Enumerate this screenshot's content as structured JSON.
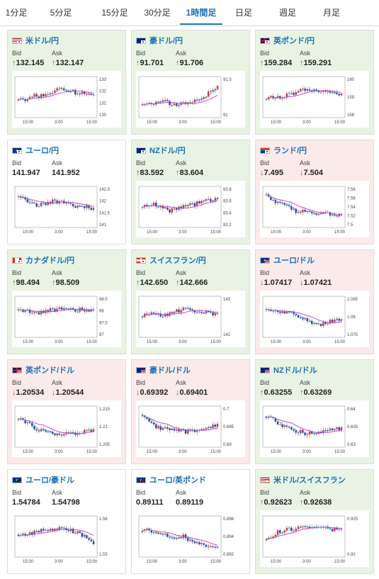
{
  "tabs": [
    {
      "label": "1分足",
      "active": false
    },
    {
      "label": "5分足",
      "active": false
    },
    {
      "label": "15分足",
      "active": false
    },
    {
      "label": "30分足",
      "active": false
    },
    {
      "label": "1時間足",
      "active": true
    },
    {
      "label": "日足",
      "active": false
    },
    {
      "label": "週足",
      "active": false
    },
    {
      "label": "月足",
      "active": false
    }
  ],
  "labels": {
    "bid": "Bid",
    "ask": "Ask"
  },
  "colors": {
    "up_bg": "#e9f3e3",
    "down_bg": "#fbeaea",
    "up_arrow": "#2e8b2e",
    "down_arrow": "#d23a3a",
    "ma_line": "#cc33cc",
    "link": "#1c6fb5"
  },
  "pairs": [
    {
      "name": "米ドル/円",
      "flag": "us-jp-flag-icon",
      "trend": "up",
      "bid_arrow": "↑",
      "bid": "132.145",
      "ask_arrow": "↑",
      "ask": "132.147",
      "chart": {
        "y_ticks": [
          "133",
          "132",
          "131",
          "130"
        ],
        "x_ticks": [
          "15:00",
          "3:00",
          "15:00"
        ]
      }
    },
    {
      "name": "豪ドル/円",
      "flag": "au-jp-flag-icon",
      "trend": "up",
      "bid_arrow": "↑",
      "bid": "91.701",
      "ask_arrow": "↑",
      "ask": "91.706",
      "chart": {
        "y_ticks": [
          "91.5",
          "91"
        ],
        "x_ticks": [
          "15:00",
          "3:00",
          "15:00"
        ]
      }
    },
    {
      "name": "英ポンド/円",
      "flag": "gb-jp-flag-icon",
      "trend": "up",
      "bid_arrow": "↑",
      "bid": "159.284",
      "ask_arrow": "↑",
      "ask": "159.291",
      "chart": {
        "y_ticks": [
          "160",
          "159",
          "158"
        ],
        "x_ticks": [
          "15:00",
          "3:00",
          "15:00"
        ]
      }
    },
    {
      "name": "ユーロ/円",
      "flag": "eu-jp-flag-icon",
      "trend": "flat",
      "bid_arrow": "",
      "bid": "141.947",
      "ask_arrow": "",
      "ask": "141.952",
      "chart": {
        "y_ticks": [
          "142.5",
          "142",
          "141.5",
          "141"
        ],
        "x_ticks": [
          "15:00",
          "3:00",
          "15:00"
        ]
      }
    },
    {
      "name": "NZドル/円",
      "flag": "nz-jp-flag-icon",
      "trend": "up",
      "bid_arrow": "↑",
      "bid": "83.592",
      "ask_arrow": "↑",
      "ask": "83.604",
      "chart": {
        "y_ticks": [
          "83.8",
          "83.6",
          "83.4",
          "83.2"
        ],
        "x_ticks": [
          "15:00",
          "3:00",
          "15:00"
        ]
      }
    },
    {
      "name": "ランド/円",
      "flag": "za-jp-flag-icon",
      "trend": "down",
      "bid_arrow": "↓",
      "bid": "7.495",
      "ask_arrow": "↓",
      "ask": "7.504",
      "chart": {
        "y_ticks": [
          "7.58",
          "7.56",
          "7.54",
          "7.52",
          "7.5"
        ],
        "x_ticks": [
          "15:00",
          "3:00",
          "15:00"
        ]
      }
    },
    {
      "name": "カナダドル/円",
      "flag": "ca-jp-flag-icon",
      "trend": "up",
      "bid_arrow": "↑",
      "bid": "98.494",
      "ask_arrow": "↑",
      "ask": "98.509",
      "chart": {
        "y_ticks": [
          "98.5",
          "98",
          "97.5",
          "97"
        ],
        "x_ticks": [
          "15:00",
          "3:00",
          "15:00"
        ]
      }
    },
    {
      "name": "スイスフラン/円",
      "flag": "ch-jp-flag-icon",
      "trend": "up",
      "bid_arrow": "↑",
      "bid": "142.650",
      "ask_arrow": "↑",
      "ask": "142.666",
      "chart": {
        "y_ticks": [
          "143",
          "142"
        ],
        "x_ticks": [
          "15:00",
          "3:00",
          "15:00"
        ]
      }
    },
    {
      "name": "ユーロ/ドル",
      "flag": "eu-us-flag-icon",
      "trend": "down",
      "bid_arrow": "↓",
      "bid": "1.07417",
      "ask_arrow": "↓",
      "ask": "1.07421",
      "chart": {
        "y_ticks": [
          "1.085",
          "1.08",
          "1.075"
        ],
        "x_ticks": [
          "15:00",
          "3:00",
          "15:00"
        ]
      }
    },
    {
      "name": "英ポンド/ドル",
      "flag": "gb-us-flag-icon",
      "trend": "down",
      "bid_arrow": "↓",
      "bid": "1.20534",
      "ask_arrow": "↓",
      "ask": "1.20544",
      "chart": {
        "y_ticks": [
          "1.215",
          "1.21",
          "1.205"
        ],
        "x_ticks": [
          "15:00",
          "3:00",
          "15:00"
        ]
      }
    },
    {
      "name": "豪ドル/ドル",
      "flag": "au-us-flag-icon",
      "trend": "down",
      "bid_arrow": "↓",
      "bid": "0.69392",
      "ask_arrow": "↓",
      "ask": "0.69401",
      "chart": {
        "y_ticks": [
          "0.7",
          "0.695",
          "0.69"
        ],
        "x_ticks": [
          "15:00",
          "3:00",
          "15:00"
        ]
      }
    },
    {
      "name": "NZドル/ドル",
      "flag": "nz-us-flag-icon",
      "trend": "up",
      "bid_arrow": "↑",
      "bid": "0.63255",
      "ask_arrow": "↑",
      "ask": "0.63269",
      "chart": {
        "y_ticks": [
          "0.64",
          "0.635",
          "0.63"
        ],
        "x_ticks": [
          "15:00",
          "3:00",
          "15:00"
        ]
      }
    },
    {
      "name": "ユーロ/豪ドル",
      "flag": "eu-au-flag-icon",
      "trend": "flat",
      "bid_arrow": "",
      "bid": "1.54784",
      "ask_arrow": "",
      "ask": "1.54798",
      "chart": {
        "y_ticks": [
          "1.56",
          "1.55"
        ],
        "x_ticks": [
          "15:00",
          "3:00",
          "15:00"
        ]
      }
    },
    {
      "name": "ユーロ/英ポンド",
      "flag": "eu-gb-flag-icon",
      "trend": "flat",
      "bid_arrow": "",
      "bid": "0.89111",
      "ask_arrow": "",
      "ask": "0.89119",
      "chart": {
        "y_ticks": [
          "0.896",
          "0.894",
          "0.892"
        ],
        "x_ticks": [
          "15:00",
          "3:00",
          "15:00"
        ]
      }
    },
    {
      "name": "米ドル/スイスフラン",
      "flag": "us-ch-flag-icon",
      "trend": "up",
      "bid_arrow": "↑",
      "bid": "0.92623",
      "ask_arrow": "↑",
      "ask": "0.92638",
      "chart": {
        "y_ticks": [
          "0.925",
          "0.92"
        ],
        "x_ticks": [
          "15:00",
          "3:00",
          "15:00"
        ]
      }
    }
  ]
}
